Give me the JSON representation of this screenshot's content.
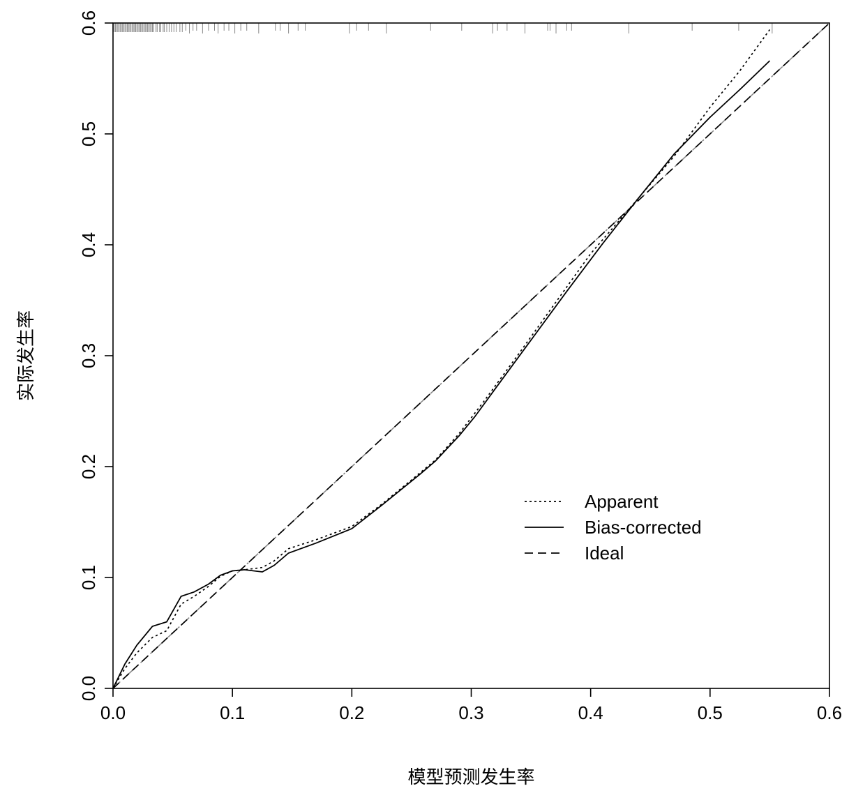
{
  "chart_data": {
    "type": "line",
    "xlabel": "模型预测发生率",
    "ylabel": "实际发生率",
    "xlim": [
      0,
      0.6
    ],
    "ylim": [
      0,
      0.6
    ],
    "xticks": [
      "0.0",
      "0.1",
      "0.2",
      "0.3",
      "0.4",
      "0.5",
      "0.6"
    ],
    "yticks": [
      "0.0",
      "0.1",
      "0.2",
      "0.3",
      "0.4",
      "0.5",
      "0.6"
    ],
    "grid": false,
    "legend_position": "lower-right",
    "series": [
      {
        "name": "Apparent",
        "style": "dotted",
        "color": "#000000",
        "points": [
          [
            0.0,
            0.0
          ],
          [
            0.01,
            0.018
          ],
          [
            0.02,
            0.032
          ],
          [
            0.033,
            0.046
          ],
          [
            0.045,
            0.052
          ],
          [
            0.057,
            0.076
          ],
          [
            0.068,
            0.083
          ],
          [
            0.08,
            0.092
          ],
          [
            0.09,
            0.101
          ],
          [
            0.1,
            0.106
          ],
          [
            0.11,
            0.107
          ],
          [
            0.125,
            0.109
          ],
          [
            0.135,
            0.115
          ],
          [
            0.147,
            0.126
          ],
          [
            0.17,
            0.134
          ],
          [
            0.2,
            0.146
          ],
          [
            0.225,
            0.166
          ],
          [
            0.25,
            0.188
          ],
          [
            0.27,
            0.206
          ],
          [
            0.29,
            0.23
          ],
          [
            0.31,
            0.258
          ],
          [
            0.34,
            0.302
          ],
          [
            0.37,
            0.347
          ],
          [
            0.4,
            0.392
          ],
          [
            0.44,
            0.442
          ],
          [
            0.47,
            0.48
          ],
          [
            0.5,
            0.524
          ],
          [
            0.525,
            0.557
          ],
          [
            0.55,
            0.594
          ]
        ]
      },
      {
        "name": "Bias-corrected",
        "style": "solid",
        "color": "#000000",
        "points": [
          [
            0.0,
            0.0
          ],
          [
            0.01,
            0.022
          ],
          [
            0.02,
            0.039
          ],
          [
            0.033,
            0.056
          ],
          [
            0.045,
            0.06
          ],
          [
            0.057,
            0.083
          ],
          [
            0.068,
            0.087
          ],
          [
            0.08,
            0.094
          ],
          [
            0.09,
            0.102
          ],
          [
            0.1,
            0.106
          ],
          [
            0.11,
            0.107
          ],
          [
            0.125,
            0.105
          ],
          [
            0.135,
            0.111
          ],
          [
            0.147,
            0.122
          ],
          [
            0.17,
            0.131
          ],
          [
            0.2,
            0.144
          ],
          [
            0.225,
            0.165
          ],
          [
            0.257,
            0.193
          ],
          [
            0.27,
            0.205
          ],
          [
            0.29,
            0.228
          ],
          [
            0.303,
            0.245
          ],
          [
            0.32,
            0.27
          ],
          [
            0.35,
            0.314
          ],
          [
            0.38,
            0.358
          ],
          [
            0.41,
            0.401
          ],
          [
            0.44,
            0.442
          ],
          [
            0.47,
            0.482
          ],
          [
            0.5,
            0.515
          ],
          [
            0.525,
            0.54
          ],
          [
            0.55,
            0.566
          ]
        ]
      },
      {
        "name": "Ideal",
        "style": "dashed",
        "color": "#000000",
        "points": [
          [
            0.0,
            0.0
          ],
          [
            0.6,
            0.6
          ]
        ]
      }
    ],
    "reference_line": {
      "style": "dashdot",
      "color": "#888888",
      "points": [
        [
          0.0,
          0.0
        ],
        [
          0.6,
          0.6
        ]
      ]
    },
    "rug": {
      "y": 0.6,
      "color": "#888888",
      "x_values": [
        0.001,
        0.002,
        0.003,
        0.004,
        0.005,
        0.006,
        0.007,
        0.008,
        0.009,
        0.01,
        0.011,
        0.012,
        0.013,
        0.014,
        0.015,
        0.016,
        0.017,
        0.018,
        0.019,
        0.02,
        0.021,
        0.022,
        0.023,
        0.024,
        0.025,
        0.026,
        0.027,
        0.028,
        0.029,
        0.03,
        0.031,
        0.032,
        0.033,
        0.034,
        0.036,
        0.037,
        0.039,
        0.04,
        0.042,
        0.043,
        0.045,
        0.047,
        0.049,
        0.051,
        0.053,
        0.056,
        0.058,
        0.061,
        0.064,
        0.067,
        0.07,
        0.075,
        0.08,
        0.085,
        0.088,
        0.093,
        0.097,
        0.102,
        0.107,
        0.112,
        0.122,
        0.136,
        0.14,
        0.147,
        0.155,
        0.161,
        0.198,
        0.204,
        0.214,
        0.229,
        0.266,
        0.292,
        0.318,
        0.322,
        0.33,
        0.345,
        0.364,
        0.366,
        0.371,
        0.38,
        0.384,
        0.432,
        0.485,
        0.524,
        0.552
      ]
    }
  }
}
